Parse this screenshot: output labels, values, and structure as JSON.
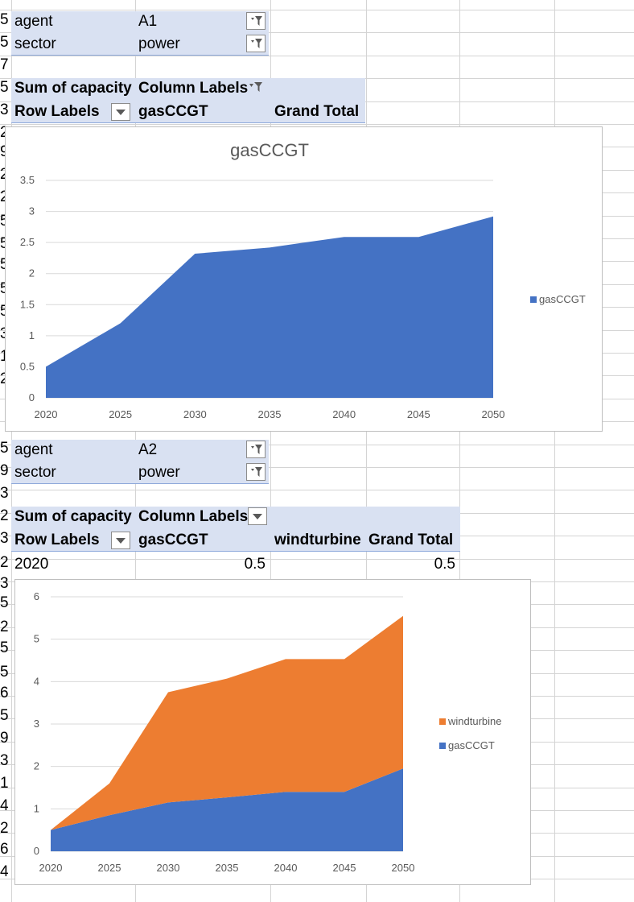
{
  "pivot1": {
    "filters": [
      {
        "field": "agent",
        "value": "A1"
      },
      {
        "field": "sector",
        "value": "power"
      }
    ],
    "header_row1": {
      "values": "Sum of capacity",
      "columns": "Column Labels"
    },
    "header_row2": {
      "rows": "Row Labels",
      "col1": "gasCCGT",
      "col2": "Grand Total"
    }
  },
  "pivot2": {
    "filters": [
      {
        "field": "agent",
        "value": "A2"
      },
      {
        "field": "sector",
        "value": "power"
      }
    ],
    "header_row1": {
      "values": "Sum of capacity",
      "columns": "Column Labels"
    },
    "header_row2": {
      "rows": "Row Labels",
      "col1": "gasCCGT",
      "col2": "windturbine",
      "col3": "Grand Total"
    },
    "row1": {
      "label": "2020",
      "v1": "0.5",
      "v3": "0.5"
    }
  },
  "icons": {
    "filter": "filter-funnel-icon",
    "dropdown": "dropdown-arrow-icon"
  },
  "colors": {
    "gasCCGT": "#4472c4",
    "windturbine": "#ed7d31",
    "pivot_header": "#d9e1f2"
  },
  "chart_data": [
    {
      "type": "area",
      "title": "gasCCGT",
      "categories": [
        "2020",
        "2025",
        "2030",
        "2035",
        "2040",
        "2045",
        "2050"
      ],
      "series": [
        {
          "name": "gasCCGT",
          "color": "#4472c4",
          "values": [
            0.5,
            1.2,
            2.32,
            2.42,
            2.59,
            2.59,
            2.92
          ]
        }
      ],
      "yticks": [
        "0",
        "0.5",
        "1",
        "1.5",
        "2",
        "2.5",
        "3",
        "3.5"
      ],
      "ylim": [
        0,
        3.5
      ],
      "legend": "right",
      "grid": true
    },
    {
      "type": "area",
      "stacked": true,
      "title": "",
      "categories": [
        "2020",
        "2025",
        "2030",
        "2035",
        "2040",
        "2045",
        "2050"
      ],
      "series": [
        {
          "name": "gasCCGT",
          "color": "#4472c4",
          "values": [
            0.5,
            0.85,
            1.15,
            1.27,
            1.4,
            1.4,
            1.95
          ]
        },
        {
          "name": "windturbine",
          "color": "#ed7d31",
          "values": [
            0,
            0.75,
            2.6,
            2.8,
            3.13,
            3.13,
            3.6
          ]
        }
      ],
      "yticks": [
        "0",
        "1",
        "2",
        "3",
        "4",
        "5",
        "6"
      ],
      "ylim": [
        0,
        6
      ],
      "legend": "right",
      "grid": true
    }
  ]
}
